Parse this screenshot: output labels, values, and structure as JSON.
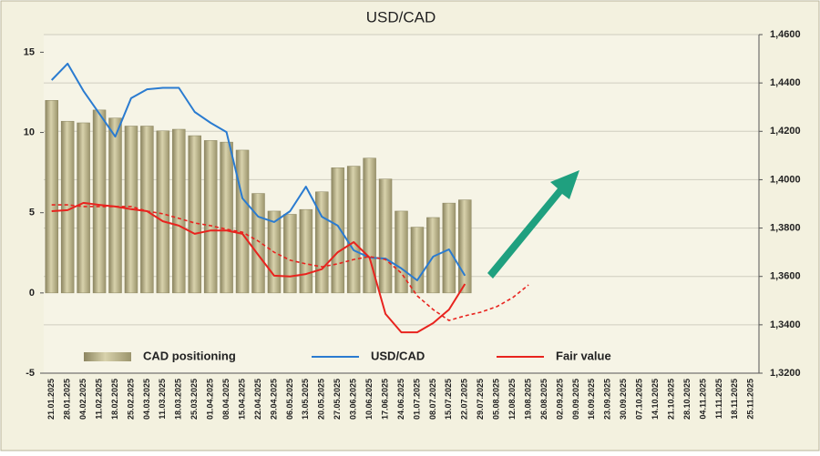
{
  "chart_data": {
    "type": "bar_line",
    "title": "USD/CAD",
    "categories": [
      "21.01.2025",
      "28.01.2025",
      "04.02.2025",
      "11.02.2025",
      "18.02.2025",
      "25.02.2025",
      "04.03.2025",
      "11.03.2025",
      "18.03.2025",
      "25.03.2025",
      "01.04.2025",
      "08.04.2025",
      "15.04.2025",
      "22.04.2025",
      "29.04.2025",
      "06.05.2025",
      "13.05.2025",
      "20.05.2025",
      "27.05.2025",
      "03.06.2025",
      "10.06.2025",
      "17.06.2025",
      "24.06.2025",
      "01.07.2025",
      "08.07.2025",
      "15.07.2025",
      "22.07.2025",
      "29.07.2025",
      "05.08.2025",
      "12.08.2025",
      "19.08.2025",
      "26.08.2025",
      "02.09.2025",
      "09.09.2025",
      "16.09.2025",
      "23.09.2025",
      "30.09.2025",
      "07.10.2025",
      "14.10.2025",
      "21.10.2025",
      "28.10.2025",
      "04.11.2025",
      "11.11.2025",
      "18.11.2025",
      "25.11.2025"
    ],
    "series": [
      {
        "name": "CAD positioning",
        "kind": "bar",
        "axis": "y",
        "color": "#b3ab7e",
        "values": [
          12,
          10.7,
          10.6,
          11.4,
          10.9,
          10.4,
          10.4,
          10.1,
          10.2,
          9.8,
          9.5,
          9.4,
          8.9,
          6.2,
          5.1,
          4.9,
          5.2,
          6.3,
          7.8,
          7.9,
          8.4,
          7.1,
          5.1,
          4.1,
          4.7,
          5.6,
          5.8,
          null,
          null,
          null,
          null,
          null,
          null,
          null,
          null,
          null,
          null,
          null,
          null,
          null,
          null,
          null,
          null,
          null,
          null
        ]
      },
      {
        "name": "USD/CAD",
        "kind": "line",
        "axis": "y2",
        "color": "#2a7bd0",
        "values": [
          1.4412,
          1.448,
          1.4367,
          1.4273,
          1.4178,
          1.4337,
          1.4374,
          1.438,
          1.438,
          1.428,
          1.4235,
          1.4197,
          1.3923,
          1.3847,
          1.3825,
          1.387,
          1.3971,
          1.3847,
          1.381,
          1.3708,
          1.3678,
          1.3674,
          1.3633,
          1.3584,
          1.3682,
          1.3712,
          1.3603,
          null,
          null,
          null,
          null,
          null,
          null,
          null,
          null,
          null,
          null,
          null,
          null,
          null,
          null,
          null,
          null,
          null,
          null
        ]
      },
      {
        "name": "Fair value",
        "kind": "line",
        "axis": "y2",
        "color": "#e8231e",
        "values": [
          1.387,
          1.3874,
          1.3904,
          1.3896,
          1.3889,
          1.3878,
          1.387,
          1.3828,
          1.381,
          1.3776,
          1.379,
          1.379,
          1.3776,
          1.3689,
          1.3603,
          1.36,
          1.361,
          1.363,
          1.37,
          1.3742,
          1.3678,
          1.3445,
          1.3369,
          1.3369,
          1.3407,
          1.3463,
          1.3569,
          null,
          null,
          null,
          null,
          null,
          null,
          null,
          null,
          null,
          null,
          null,
          null,
          null,
          null,
          null,
          null,
          null,
          null
        ]
      },
      {
        "kind": "line",
        "axis": "y2",
        "color": "#e8231e",
        "line_style": "dashed",
        "values": [
          1.3896,
          1.3896,
          1.3889,
          1.3889,
          1.3889,
          1.3889,
          1.387,
          1.3859,
          1.384,
          1.3821,
          1.381,
          1.3795,
          1.3783,
          1.3746,
          1.37,
          1.3667,
          1.3652,
          1.364,
          1.3652,
          1.367,
          1.3682,
          1.367,
          1.3614,
          1.352,
          1.3463,
          1.3418,
          1.3437,
          1.3452,
          1.3475,
          1.3512,
          1.3565,
          null,
          null,
          null,
          null,
          null,
          null,
          null,
          null,
          null,
          null,
          null,
          null,
          null,
          null
        ]
      }
    ],
    "ylim": [
      -5,
      16.1
    ],
    "yticks": [
      -5,
      0,
      5,
      10,
      15
    ],
    "y2lim": [
      1.32,
      1.46
    ],
    "y2ticks": [
      {
        "value": 1.32,
        "label": "1,3200"
      },
      {
        "value": 1.34,
        "label": "1,3400"
      },
      {
        "value": 1.36,
        "label": "1,3600"
      },
      {
        "value": 1.38,
        "label": "1,3800"
      },
      {
        "value": 1.4,
        "label": "1,4000"
      },
      {
        "value": 1.42,
        "label": "1,4200"
      },
      {
        "value": 1.44,
        "label": "1,4400"
      },
      {
        "value": 1.46,
        "label": "1,4600"
      }
    ],
    "grid": true
  }
}
